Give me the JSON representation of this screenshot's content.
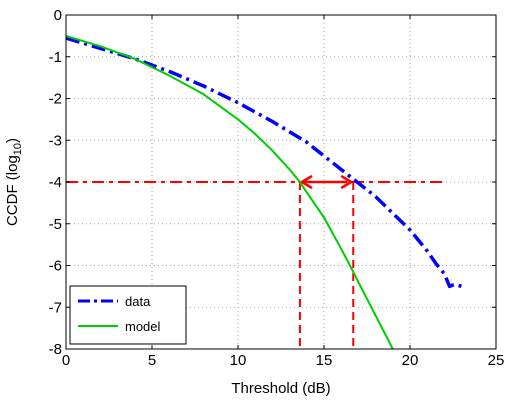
{
  "chart_data": {
    "type": "line",
    "xlabel": "Threshold (dB)",
    "ylabel_main": "CCDF (log",
    "ylabel_sub": "10",
    "ylabel_tail": ")",
    "xlim": [
      0,
      25
    ],
    "ylim": [
      -8,
      0
    ],
    "xticks": [
      0,
      5,
      10,
      15,
      20,
      25
    ],
    "yticks": [
      0,
      -1,
      -2,
      -3,
      -4,
      -5,
      -6,
      -7,
      -8
    ],
    "grid": true,
    "legend_position": "bottom-left",
    "series": [
      {
        "name": "data",
        "color": "#0000ff",
        "style": "dash-dot",
        "x": [
          0,
          2,
          4,
          6,
          8,
          10,
          12,
          14,
          16,
          18,
          20,
          21,
          21.5,
          22,
          22.3,
          22.6,
          23
        ],
        "y": [
          -0.55,
          -0.8,
          -1.05,
          -1.35,
          -1.7,
          -2.1,
          -2.55,
          -3.05,
          -3.7,
          -4.35,
          -5.15,
          -5.65,
          -5.95,
          -6.2,
          -6.5,
          -6.45,
          -6.5
        ]
      },
      {
        "name": "model",
        "color": "#00cc00",
        "style": "solid",
        "x": [
          0,
          2,
          4,
          6,
          8,
          10,
          11,
          12,
          13,
          13.6,
          14,
          15,
          16,
          16.7,
          17,
          18,
          19
        ],
        "y": [
          -0.5,
          -0.75,
          -1.05,
          -1.45,
          -1.9,
          -2.5,
          -2.85,
          -3.25,
          -3.7,
          -4.0,
          -4.25,
          -4.85,
          -5.6,
          -6.15,
          -6.4,
          -7.2,
          -8.0
        ]
      }
    ],
    "annotations": {
      "horizontal_line_y": -4,
      "horizontal_line_x_range": [
        0,
        22
      ],
      "vertical_lines_x": [
        13.6,
        16.7
      ],
      "arrow_x_range": [
        13.6,
        16.7
      ],
      "arrow_y": -4,
      "color": "#ff0000"
    }
  }
}
